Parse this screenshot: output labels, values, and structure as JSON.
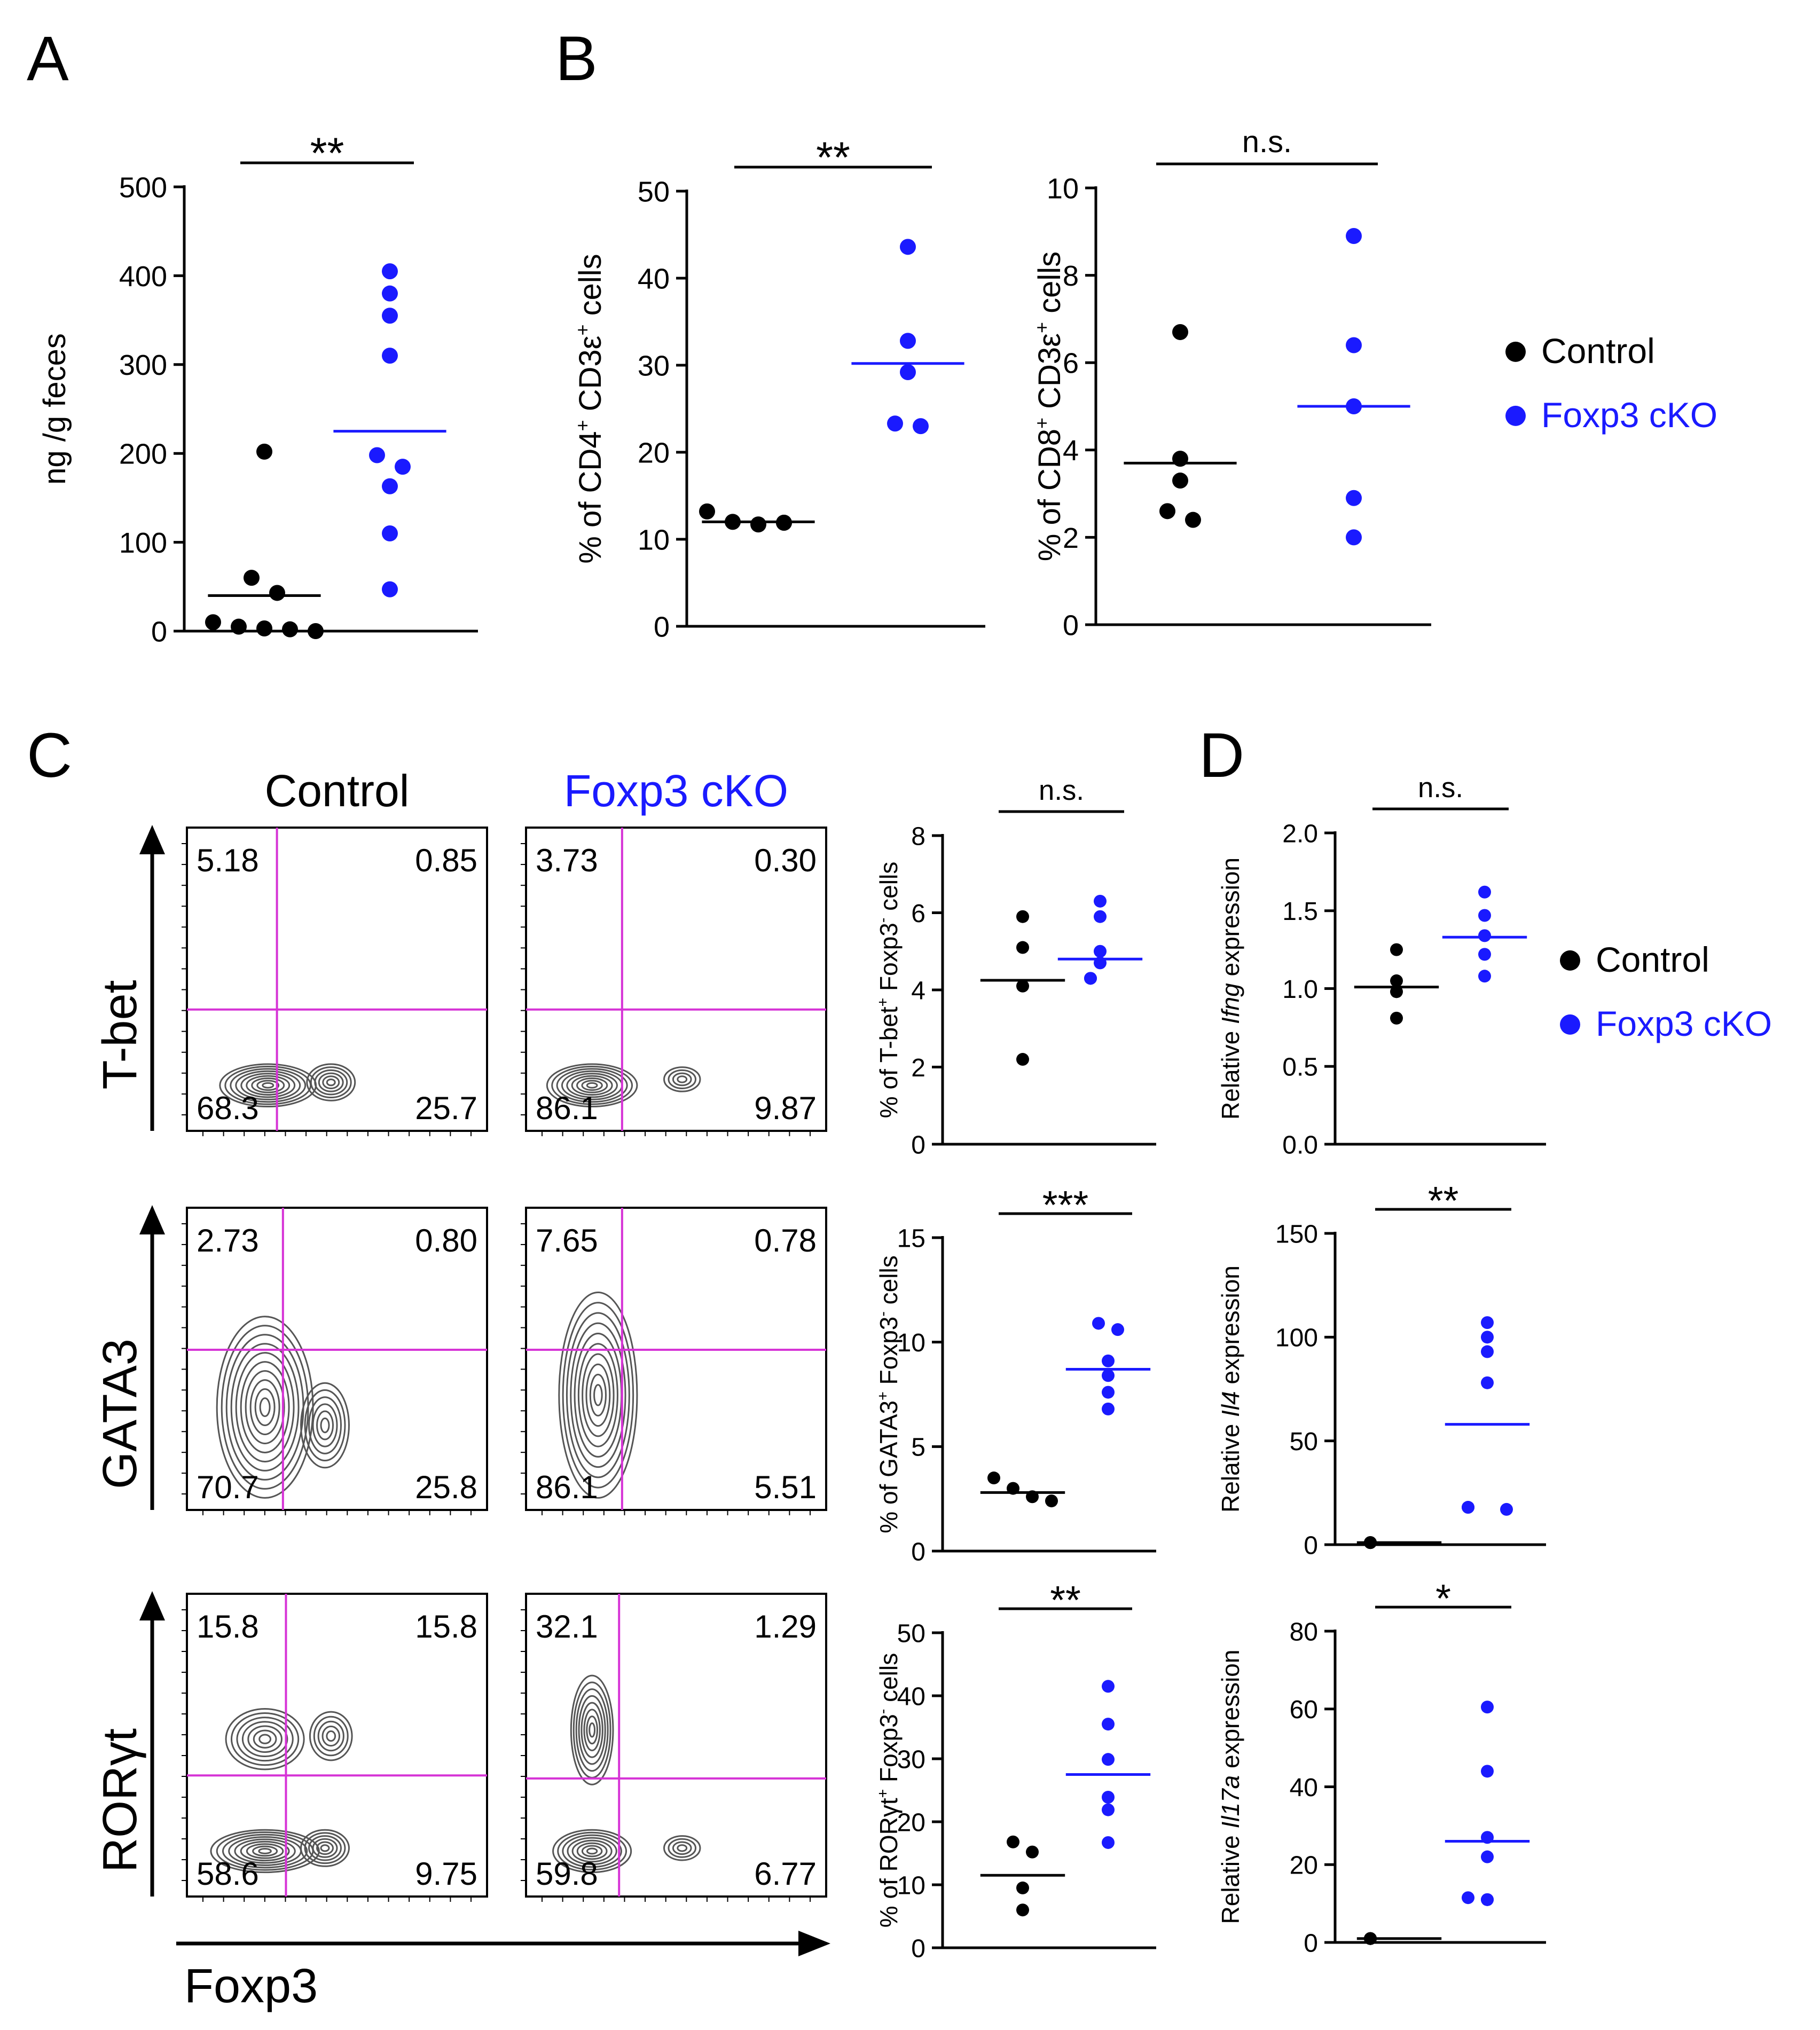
{
  "colors": {
    "control": "#000000",
    "cko": "#1a1aff",
    "gate": "#d633d6",
    "contour": "#555555"
  },
  "panel_labels": [
    "A",
    "B",
    "C",
    "D"
  ],
  "chart_data": [
    {
      "id": "A",
      "type": "scatter",
      "ylabel": "ng /g feces",
      "ylim": [
        0,
        500
      ],
      "yticks": [
        "0",
        "100",
        "200",
        "300",
        "400",
        "500"
      ],
      "significance": "**",
      "series": [
        {
          "name": "Control",
          "values": [
            202,
            60,
            43,
            10,
            5,
            3,
            2,
            0
          ],
          "mean": 40
        },
        {
          "name": "Foxp3 cKO",
          "values": [
            405,
            380,
            355,
            310,
            198,
            185,
            163,
            110,
            47
          ],
          "mean": 225
        }
      ]
    },
    {
      "id": "B1",
      "type": "scatter",
      "ylabel_parts": [
        "%  of CD4",
        "+",
        " CD3ε",
        "+",
        " cells"
      ],
      "ylim": [
        0,
        50
      ],
      "yticks": [
        "0",
        "10",
        "20",
        "30",
        "40",
        "50"
      ],
      "significance": "**",
      "series": [
        {
          "name": "Control",
          "values": [
            13.2,
            12.0,
            11.7,
            11.9,
            11.9
          ],
          "mean": 12
        },
        {
          "name": "Foxp3 cKO",
          "values": [
            43.6,
            32.8,
            29.2,
            23.3,
            23.0
          ],
          "mean": 30.2
        }
      ]
    },
    {
      "id": "B2",
      "type": "scatter",
      "ylabel_parts": [
        "%  of CD8",
        "+",
        " CD3ε",
        "+",
        " cells"
      ],
      "ylim": [
        0,
        10
      ],
      "yticks": [
        "0",
        "2",
        "4",
        "6",
        "8",
        "10"
      ],
      "significance": "n.s.",
      "series": [
        {
          "name": "Control",
          "values": [
            6.7,
            3.8,
            3.3,
            2.6,
            2.4
          ],
          "mean": 3.7
        },
        {
          "name": "Foxp3 cKO",
          "values": [
            8.9,
            6.4,
            5.0,
            2.9,
            2.0
          ],
          "mean": 5.0
        }
      ]
    },
    {
      "id": "C_tbet",
      "type": "scatter",
      "ylabel_parts": [
        "%  of T-bet",
        "+",
        " Foxp3",
        "-",
        " cells"
      ],
      "ylim": [
        0,
        8
      ],
      "yticks": [
        "0",
        "2",
        "4",
        "6",
        "8"
      ],
      "significance": "n.s.",
      "series": [
        {
          "name": "Control",
          "values": [
            5.9,
            5.1,
            4.1,
            2.2
          ],
          "mean": 4.25
        },
        {
          "name": "Foxp3 cKO",
          "values": [
            6.3,
            5.9,
            5.0,
            4.7,
            4.3,
            4.3
          ],
          "mean": 4.8
        }
      ]
    },
    {
      "id": "C_gata3",
      "type": "scatter",
      "ylabel_parts": [
        "%  of GATA3",
        "+",
        " Foxp3",
        "-",
        " cells"
      ],
      "ylim": [
        0,
        15
      ],
      "yticks": [
        "0",
        "5",
        "10",
        "15"
      ],
      "significance": "***",
      "series": [
        {
          "name": "Control",
          "values": [
            3.5,
            3.0,
            2.6,
            2.4
          ],
          "mean": 2.8
        },
        {
          "name": "Foxp3 cKO",
          "values": [
            10.9,
            10.6,
            9.1,
            8.4,
            7.6,
            6.8
          ],
          "mean": 8.7
        }
      ]
    },
    {
      "id": "C_rorgt",
      "type": "scatter",
      "ylabel_parts": [
        "%  of RORγt",
        "+",
        " Foxp3",
        "-",
        " cells"
      ],
      "ylim": [
        0,
        50
      ],
      "yticks": [
        "0",
        "10",
        "20",
        "30",
        "40",
        "50"
      ],
      "significance": "**",
      "series": [
        {
          "name": "Control",
          "values": [
            16.8,
            15.2,
            9.5,
            6.0
          ],
          "mean": 11.5
        },
        {
          "name": "Foxp3 cKO",
          "values": [
            41.5,
            35.5,
            29.9,
            23.9,
            21.9,
            16.7
          ],
          "mean": 27.5
        }
      ]
    },
    {
      "id": "D_ifng",
      "type": "scatter",
      "ylabel_parts": [
        "Relative ",
        "Ifng",
        " expression"
      ],
      "ylim": [
        0,
        2
      ],
      "yticks": [
        "0.0",
        "0.5",
        "1.0",
        "1.5",
        "2.0"
      ],
      "significance": "n.s.",
      "series": [
        {
          "name": "Control",
          "values": [
            1.25,
            1.05,
            0.98,
            0.81
          ],
          "mean": 1.01
        },
        {
          "name": "Foxp3 cKO",
          "values": [
            1.62,
            1.47,
            1.34,
            1.22,
            1.08
          ],
          "mean": 1.33
        }
      ]
    },
    {
      "id": "D_il4",
      "type": "scatter",
      "ylabel_parts": [
        "Relative ",
        "Il4",
        " expression"
      ],
      "ylim": [
        0,
        150
      ],
      "yticks": [
        "0",
        "50",
        "100",
        "150"
      ],
      "significance": "**",
      "series": [
        {
          "name": "Control",
          "values": [
            1,
            1,
            1,
            1
          ],
          "mean": 1
        },
        {
          "name": "Foxp3 cKO",
          "values": [
            107,
            100,
            93,
            78,
            18,
            18,
            17
          ],
          "mean": 58
        }
      ]
    },
    {
      "id": "D_il17a",
      "type": "scatter",
      "ylabel_parts": [
        "Relative ",
        "Il17a",
        " expression"
      ],
      "ylim": [
        0,
        80
      ],
      "yticks": [
        "0",
        "20",
        "40",
        "60",
        "80"
      ],
      "significance": "*",
      "series": [
        {
          "name": "Control",
          "values": [
            1,
            1,
            1,
            1
          ],
          "mean": 1
        },
        {
          "name": "Foxp3 cKO",
          "values": [
            60.5,
            44,
            27,
            22,
            11.5,
            11,
            11
          ],
          "mean": 26
        }
      ]
    }
  ],
  "legend": {
    "items": [
      "Control",
      "Foxp3 cKO"
    ]
  },
  "flow": {
    "column_titles": [
      "Control",
      "Foxp3 cKO"
    ],
    "x_axis_label": "Foxp3",
    "rows": [
      {
        "marker": "T-bet",
        "plots": [
          {
            "ul": "5.18",
            "ur": "0.85",
            "ll": "68.3",
            "lr": "25.7"
          },
          {
            "ul": "3.73",
            "ur": "0.30",
            "ll": "86.1",
            "lr": "9.87"
          }
        ]
      },
      {
        "marker": "GATA3",
        "plots": [
          {
            "ul": "2.73",
            "ur": "0.80",
            "ll": "70.7",
            "lr": "25.8"
          },
          {
            "ul": "7.65",
            "ur": "0.78",
            "ll": "86.1",
            "lr": "5.51"
          }
        ]
      },
      {
        "marker": "RORγt",
        "plots": [
          {
            "ul": "15.8",
            "ur": "15.8",
            "ll": "58.6",
            "lr": "9.75"
          },
          {
            "ul": "32.1",
            "ur": "1.29",
            "ll": "59.8",
            "lr": "6.77"
          }
        ]
      }
    ]
  }
}
